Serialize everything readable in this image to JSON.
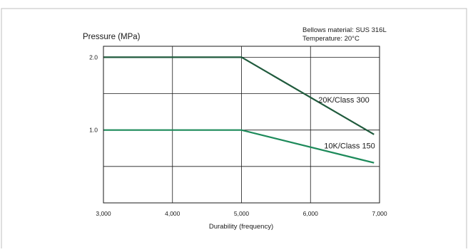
{
  "chart_data": {
    "type": "line",
    "title": "",
    "ylabel": "Pressure (MPa)",
    "xlabel": "Durability (frequency)",
    "annotations": [
      "Bellows material: SUS 316L",
      "Temperature: 20°C"
    ],
    "xlim": [
      3000,
      7000
    ],
    "ylim": [
      0,
      2.15
    ],
    "x_ticks": [
      "3,000",
      "4,000",
      "5,000",
      "6,000",
      "7,000"
    ],
    "y_ticks": [
      "1.0",
      "2.0"
    ],
    "grid": true,
    "legend": "none",
    "series": [
      {
        "name": "20K/Class 300",
        "color": "#1f5a3c",
        "x": [
          3000,
          5000,
          6920
        ],
        "y": [
          2.0,
          2.0,
          0.94
        ]
      },
      {
        "name": "10K/Class 150",
        "color": "#1d8a5a",
        "x": [
          3000,
          5000,
          6920
        ],
        "y": [
          1.0,
          1.0,
          0.55
        ]
      }
    ]
  }
}
